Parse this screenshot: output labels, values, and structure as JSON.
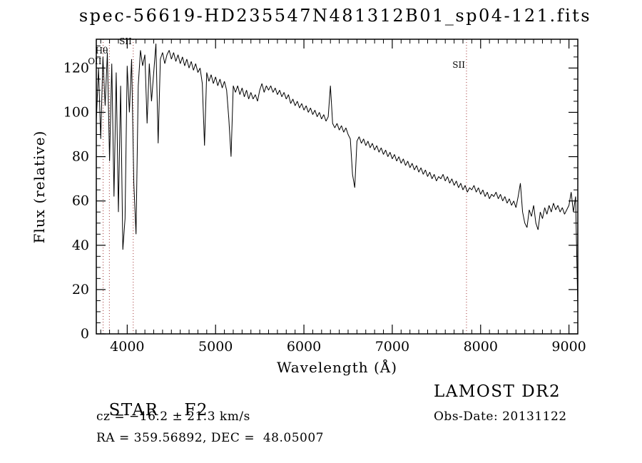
{
  "title": "spec-56619-HD235547N481312B01_sp04-121.fits",
  "chart_data": {
    "type": "line",
    "title": "spec-56619-HD235547N481312B01_sp04-121.fits",
    "xlabel": "Wavelength (Å)",
    "ylabel": "Flux (relative)",
    "xlim": [
      3650,
      9100
    ],
    "ylim": [
      0,
      133
    ],
    "x_ticks": [
      4000,
      5000,
      6000,
      7000,
      8000,
      9000
    ],
    "y_ticks": [
      0,
      20,
      40,
      60,
      80,
      100,
      120
    ],
    "grid": false,
    "legend": "none",
    "line_color": "#000000",
    "marker_color": "#a03434",
    "spectral_lines": [
      {
        "label": "OII",
        "wavelength": 3727,
        "label_y": 90
      },
      {
        "label": "Hθ",
        "wavelength": 3798,
        "label_y": 75
      },
      {
        "label": "SII",
        "wavelength": 4068,
        "label_y": 62
      },
      {
        "label": "SII",
        "wavelength": 7840,
        "label_y": 95
      }
    ],
    "points": [
      [
        3650,
        96
      ],
      [
        3675,
        120
      ],
      [
        3700,
        88
      ],
      [
        3725,
        125
      ],
      [
        3750,
        103
      ],
      [
        3775,
        127
      ],
      [
        3800,
        78
      ],
      [
        3825,
        122
      ],
      [
        3850,
        62
      ],
      [
        3875,
        118
      ],
      [
        3900,
        55
      ],
      [
        3925,
        112
      ],
      [
        3950,
        38
      ],
      [
        3975,
        52
      ],
      [
        4000,
        121
      ],
      [
        4025,
        100
      ],
      [
        4050,
        124
      ],
      [
        4075,
        68
      ],
      [
        4100,
        45
      ],
      [
        4125,
        112
      ],
      [
        4150,
        128
      ],
      [
        4175,
        121
      ],
      [
        4200,
        126
      ],
      [
        4225,
        95
      ],
      [
        4250,
        122
      ],
      [
        4275,
        105
      ],
      [
        4300,
        118
      ],
      [
        4325,
        131
      ],
      [
        4350,
        86
      ],
      [
        4375,
        124
      ],
      [
        4400,
        127
      ],
      [
        4425,
        122
      ],
      [
        4450,
        126
      ],
      [
        4475,
        128
      ],
      [
        4500,
        124
      ],
      [
        4525,
        127
      ],
      [
        4550,
        123
      ],
      [
        4575,
        126
      ],
      [
        4600,
        122
      ],
      [
        4625,
        125
      ],
      [
        4650,
        121
      ],
      [
        4675,
        124
      ],
      [
        4700,
        120
      ],
      [
        4725,
        123
      ],
      [
        4750,
        119
      ],
      [
        4775,
        122
      ],
      [
        4800,
        118
      ],
      [
        4825,
        120
      ],
      [
        4850,
        113
      ],
      [
        4875,
        85
      ],
      [
        4900,
        118
      ],
      [
        4925,
        114
      ],
      [
        4950,
        117
      ],
      [
        4975,
        113
      ],
      [
        5000,
        116
      ],
      [
        5025,
        112
      ],
      [
        5050,
        115
      ],
      [
        5075,
        111
      ],
      [
        5100,
        114
      ],
      [
        5125,
        110
      ],
      [
        5150,
        97
      ],
      [
        5175,
        80
      ],
      [
        5200,
        112
      ],
      [
        5225,
        109
      ],
      [
        5250,
        112
      ],
      [
        5275,
        108
      ],
      [
        5300,
        111
      ],
      [
        5325,
        107
      ],
      [
        5350,
        110
      ],
      [
        5375,
        106
      ],
      [
        5400,
        109
      ],
      [
        5425,
        106
      ],
      [
        5450,
        108
      ],
      [
        5475,
        105
      ],
      [
        5500,
        110
      ],
      [
        5525,
        113
      ],
      [
        5550,
        109
      ],
      [
        5575,
        112
      ],
      [
        5600,
        110
      ],
      [
        5625,
        112
      ],
      [
        5650,
        109
      ],
      [
        5675,
        111
      ],
      [
        5700,
        108
      ],
      [
        5725,
        110
      ],
      [
        5750,
        107
      ],
      [
        5775,
        109
      ],
      [
        5800,
        106
      ],
      [
        5825,
        108
      ],
      [
        5850,
        104
      ],
      [
        5875,
        106
      ],
      [
        5900,
        103
      ],
      [
        5925,
        105
      ],
      [
        5950,
        102
      ],
      [
        5975,
        104
      ],
      [
        6000,
        101
      ],
      [
        6025,
        103
      ],
      [
        6050,
        100
      ],
      [
        6075,
        102
      ],
      [
        6100,
        99
      ],
      [
        6125,
        101
      ],
      [
        6150,
        98
      ],
      [
        6175,
        100
      ],
      [
        6200,
        97
      ],
      [
        6225,
        99
      ],
      [
        6250,
        96
      ],
      [
        6275,
        98
      ],
      [
        6300,
        112
      ],
      [
        6325,
        95
      ],
      [
        6350,
        93
      ],
      [
        6375,
        95
      ],
      [
        6400,
        92
      ],
      [
        6425,
        94
      ],
      [
        6450,
        91
      ],
      [
        6475,
        93
      ],
      [
        6500,
        90
      ],
      [
        6525,
        88
      ],
      [
        6550,
        72
      ],
      [
        6575,
        66
      ],
      [
        6600,
        87
      ],
      [
        6625,
        89
      ],
      [
        6650,
        86
      ],
      [
        6675,
        88
      ],
      [
        6700,
        85
      ],
      [
        6725,
        87
      ],
      [
        6750,
        84
      ],
      [
        6775,
        86
      ],
      [
        6800,
        83
      ],
      [
        6825,
        85
      ],
      [
        6850,
        82
      ],
      [
        6875,
        84
      ],
      [
        6900,
        81
      ],
      [
        6925,
        83
      ],
      [
        6950,
        80
      ],
      [
        6975,
        82
      ],
      [
        7000,
        79
      ],
      [
        7025,
        81
      ],
      [
        7050,
        78
      ],
      [
        7075,
        80
      ],
      [
        7100,
        77
      ],
      [
        7125,
        79
      ],
      [
        7150,
        76
      ],
      [
        7175,
        78
      ],
      [
        7200,
        75
      ],
      [
        7225,
        77
      ],
      [
        7250,
        74
      ],
      [
        7275,
        76
      ],
      [
        7300,
        73
      ],
      [
        7325,
        75
      ],
      [
        7350,
        72
      ],
      [
        7375,
        74
      ],
      [
        7400,
        71
      ],
      [
        7425,
        73
      ],
      [
        7450,
        70
      ],
      [
        7475,
        72
      ],
      [
        7500,
        69
      ],
      [
        7525,
        71
      ],
      [
        7550,
        70
      ],
      [
        7575,
        72
      ],
      [
        7600,
        69
      ],
      [
        7625,
        71
      ],
      [
        7650,
        68
      ],
      [
        7675,
        70
      ],
      [
        7700,
        67
      ],
      [
        7725,
        69
      ],
      [
        7750,
        66
      ],
      [
        7775,
        68
      ],
      [
        7800,
        65
      ],
      [
        7825,
        67
      ],
      [
        7850,
        64
      ],
      [
        7875,
        66
      ],
      [
        7900,
        65
      ],
      [
        7925,
        67
      ],
      [
        7950,
        64
      ],
      [
        7975,
        66
      ],
      [
        8000,
        63
      ],
      [
        8025,
        65
      ],
      [
        8050,
        62
      ],
      [
        8075,
        64
      ],
      [
        8100,
        61
      ],
      [
        8125,
        63
      ],
      [
        8150,
        62
      ],
      [
        8175,
        64
      ],
      [
        8200,
        61
      ],
      [
        8225,
        63
      ],
      [
        8250,
        60
      ],
      [
        8275,
        62
      ],
      [
        8300,
        59
      ],
      [
        8325,
        61
      ],
      [
        8350,
        58
      ],
      [
        8375,
        60
      ],
      [
        8400,
        57
      ],
      [
        8425,
        62
      ],
      [
        8450,
        68
      ],
      [
        8475,
        55
      ],
      [
        8500,
        50
      ],
      [
        8525,
        48
      ],
      [
        8550,
        56
      ],
      [
        8575,
        53
      ],
      [
        8600,
        58
      ],
      [
        8625,
        50
      ],
      [
        8650,
        47
      ],
      [
        8675,
        55
      ],
      [
        8700,
        52
      ],
      [
        8725,
        57
      ],
      [
        8750,
        54
      ],
      [
        8775,
        58
      ],
      [
        8800,
        55
      ],
      [
        8825,
        59
      ],
      [
        8850,
        56
      ],
      [
        8875,
        58
      ],
      [
        8900,
        55
      ],
      [
        8925,
        57
      ],
      [
        8950,
        54
      ],
      [
        8975,
        56
      ],
      [
        9000,
        58
      ],
      [
        9025,
        64
      ],
      [
        9050,
        55
      ],
      [
        9075,
        62
      ],
      [
        9100,
        12
      ]
    ]
  },
  "annotations": {
    "object_type": "STAR",
    "subclass": "F2",
    "survey": "LAMOST DR2",
    "cz": "cz = −16.2 ± 21.3 km/s",
    "obs_date": "Obs-Date: 20131122",
    "radec": "RA = 359.56892, DEC =  48.05007"
  }
}
